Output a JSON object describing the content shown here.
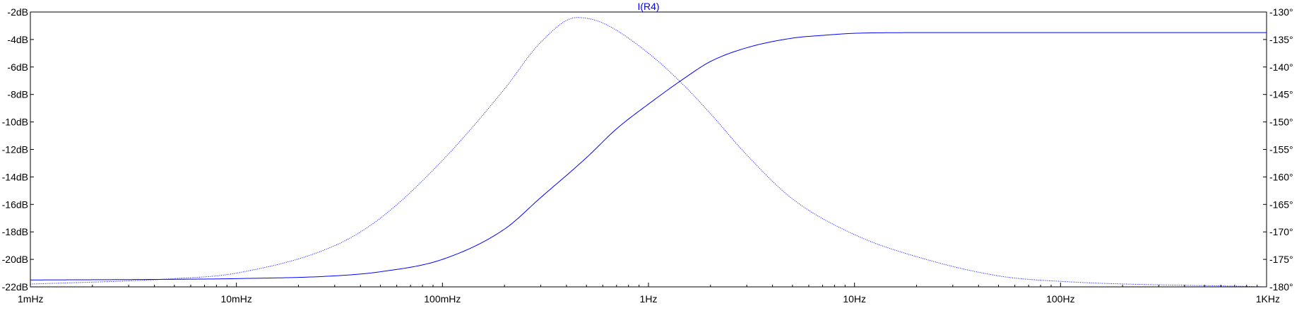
{
  "chart_data": {
    "type": "line",
    "title": "I(R4)",
    "x_scale": "log",
    "x_ticks": [
      "1mHz",
      "10mHz",
      "100mHz",
      "1Hz",
      "10Hz",
      "100Hz",
      "1KHz"
    ],
    "x_range_hz": [
      0.001,
      1000
    ],
    "y_left_ticks": [
      "-2dB",
      "-4dB",
      "-6dB",
      "-8dB",
      "-10dB",
      "-12dB",
      "-14dB",
      "-16dB",
      "-18dB",
      "-20dB",
      "-22dB"
    ],
    "y_left_range_db": [
      -22,
      -2
    ],
    "y_right_ticks": [
      "-130°",
      "-135°",
      "-140°",
      "-145°",
      "-150°",
      "-155°",
      "-160°",
      "-165°",
      "-170°",
      "-175°",
      "-180°"
    ],
    "y_right_range_deg": [
      -180,
      -130
    ],
    "grid": false,
    "series": [
      {
        "name": "I(R4)",
        "kind": "magnitude",
        "axis": "left",
        "style": "solid",
        "color": "#0000ff",
        "points": [
          [
            0.001,
            -21.5
          ],
          [
            0.005,
            -21.45
          ],
          [
            0.01,
            -21.4
          ],
          [
            0.03,
            -21.2
          ],
          [
            0.05,
            -20.9
          ],
          [
            0.1,
            -20.0
          ],
          [
            0.2,
            -17.8
          ],
          [
            0.3,
            -15.5
          ],
          [
            0.5,
            -12.6
          ],
          [
            0.7,
            -10.5
          ],
          [
            1,
            -8.7
          ],
          [
            1.5,
            -6.8
          ],
          [
            2,
            -5.6
          ],
          [
            3,
            -4.6
          ],
          [
            5,
            -3.9
          ],
          [
            7,
            -3.7
          ],
          [
            10,
            -3.55
          ],
          [
            20,
            -3.5
          ],
          [
            100,
            -3.5
          ],
          [
            1000,
            -3.5
          ]
        ]
      },
      {
        "name": "I(R4) phase",
        "kind": "phase",
        "axis": "right",
        "style": "dotted",
        "color": "#0000ff",
        "points": [
          [
            0.001,
            -179.5
          ],
          [
            0.005,
            -178.5
          ],
          [
            0.01,
            -177.5
          ],
          [
            0.03,
            -172.5
          ],
          [
            0.05,
            -167.5
          ],
          [
            0.1,
            -157.0
          ],
          [
            0.2,
            -144.0
          ],
          [
            0.3,
            -135.5
          ],
          [
            0.45,
            -131.0
          ],
          [
            0.6,
            -132.0
          ],
          [
            1,
            -137.5
          ],
          [
            1.5,
            -143.5
          ],
          [
            2,
            -148.5
          ],
          [
            3,
            -156.0
          ],
          [
            5,
            -164.0
          ],
          [
            10,
            -170.5
          ],
          [
            20,
            -174.5
          ],
          [
            50,
            -178.0
          ],
          [
            100,
            -179.0
          ],
          [
            1000,
            -180.0
          ]
        ]
      }
    ]
  }
}
